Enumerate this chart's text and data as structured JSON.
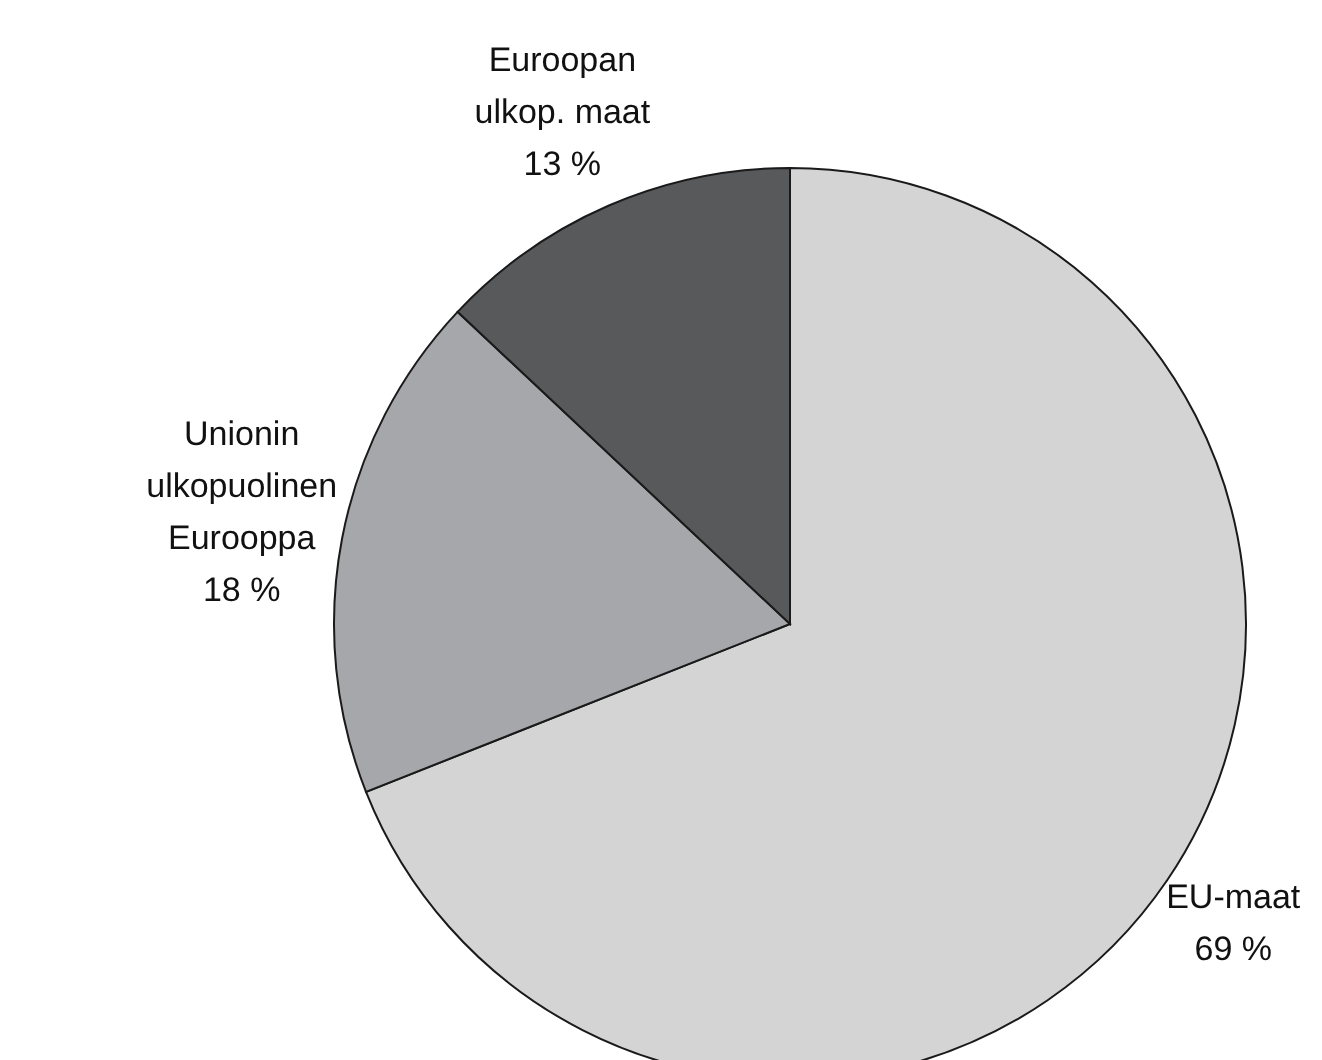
{
  "chart_data": {
    "type": "pie",
    "categories": [
      "EU-maat",
      "Unionin\nulkopuolinen\nEurooppa",
      "Euroopan\nulkop. maat"
    ],
    "values": [
      69,
      18,
      13
    ],
    "colors": [
      "#d4d4d4",
      "#a6a7aa",
      "#58595b"
    ],
    "value_labels": [
      "69 %",
      "18 %",
      "13 %"
    ],
    "legend": false
  }
}
